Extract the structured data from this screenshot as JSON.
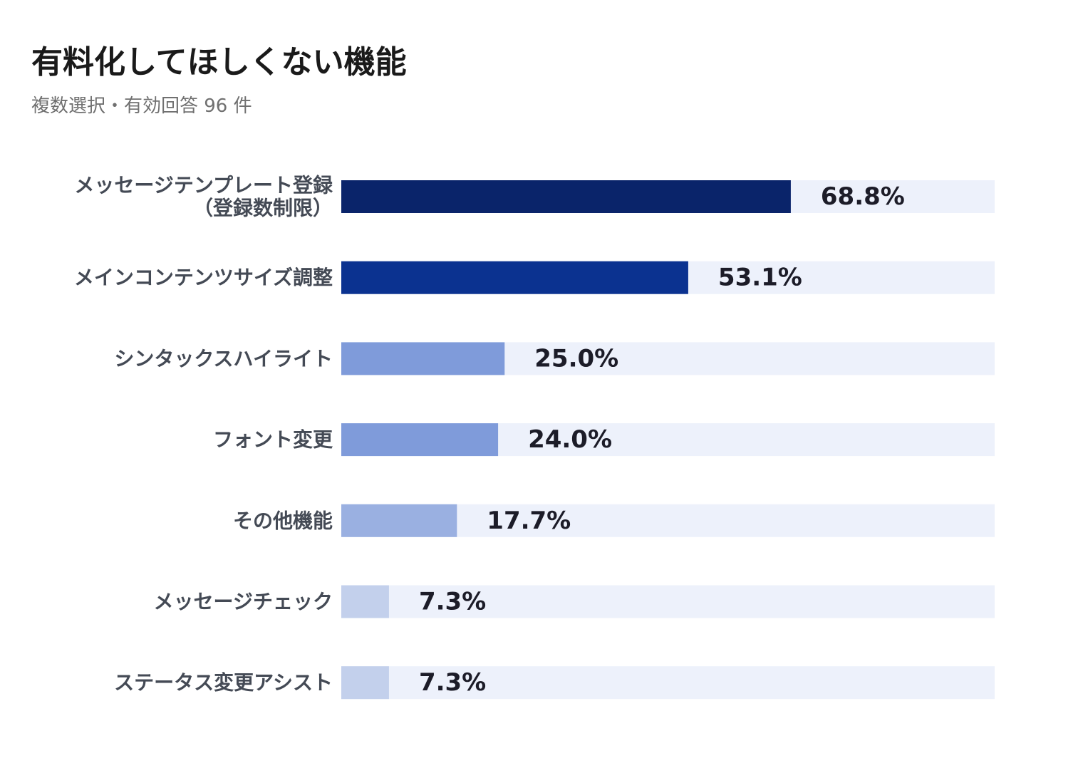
{
  "chart_data": {
    "type": "bar",
    "orientation": "horizontal",
    "title": "有料化してほしくない機能",
    "subtitle": "複数選択・有効回答 96 件",
    "xlim": [
      0,
      100
    ],
    "grid": false,
    "legend": "none",
    "categories": [
      [
        "メッセージテンプレート登録",
        "（登録数制限）"
      ],
      [
        "メインコンテンツサイズ調整"
      ],
      [
        "シンタックスハイライト"
      ],
      [
        "フォント変更"
      ],
      [
        "その他機能"
      ],
      [
        "メッセージチェック"
      ],
      [
        "ステータス変更アシスト"
      ]
    ],
    "values": [
      68.8,
      53.1,
      25.0,
      24.0,
      17.7,
      7.3,
      7.3
    ],
    "value_labels": [
      "68.8%",
      "53.1%",
      "25.0%",
      "24.0%",
      "17.7%",
      "7.3%",
      "7.3%"
    ],
    "colors": [
      "#0a246a",
      "#0b3290",
      "#7f9bda",
      "#7f9bda",
      "#9ab0e1",
      "#c3d0ec",
      "#c3d0ec"
    ],
    "track_color": "#edf1fb"
  }
}
